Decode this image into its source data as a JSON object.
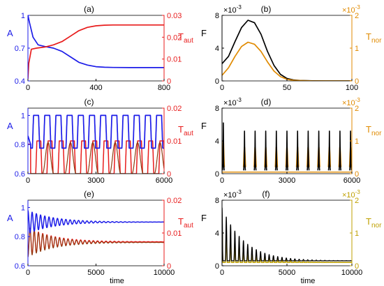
{
  "colors": {
    "blue": "#1c1ce8",
    "red": "#e81c1c",
    "black": "#000000",
    "orange": "#e08a00",
    "olive": "#bfa000",
    "brown": "#8a3d10"
  },
  "chart_data": [
    {
      "panel": "(a)",
      "type": "line",
      "xlim": [
        0,
        800
      ],
      "xticks": [
        "0",
        "400",
        "800"
      ],
      "yleft": {
        "label": "A",
        "color": "#1c1ce8",
        "lim": [
          0.4,
          1.0
        ],
        "ticks": [
          "0.4",
          "0.7",
          "1"
        ],
        "tickvals": [
          0.4,
          0.7,
          1.0
        ]
      },
      "yright": {
        "label": "T",
        "label_sub": "aut",
        "color": "#e81c1c",
        "lim": [
          0,
          0.03
        ],
        "ticks": [
          "0",
          "0.01",
          "0.02",
          "0.03"
        ]
      },
      "series": [
        {
          "axis": "left",
          "color": "#1c1ce8",
          "x": [
            0,
            10,
            30,
            60,
            100,
            150,
            200,
            250,
            300,
            350,
            400,
            450,
            500,
            600,
            700,
            800
          ],
          "y": [
            1.0,
            0.93,
            0.8,
            0.73,
            0.715,
            0.7,
            0.67,
            0.62,
            0.57,
            0.545,
            0.53,
            0.525,
            0.523,
            0.522,
            0.522,
            0.522
          ]
        },
        {
          "axis": "right",
          "color": "#e81c1c",
          "x": [
            0,
            5,
            20,
            50,
            100,
            150,
            200,
            250,
            300,
            350,
            400,
            450,
            500,
            600,
            700,
            800
          ],
          "y": [
            0.001,
            0.008,
            0.0145,
            0.015,
            0.0155,
            0.0165,
            0.018,
            0.0205,
            0.023,
            0.0245,
            0.0252,
            0.0255,
            0.0256,
            0.0256,
            0.0256,
            0.0256
          ]
        }
      ]
    },
    {
      "panel": "(b)",
      "type": "line",
      "xlim": [
        0,
        100
      ],
      "xticks": [
        "0",
        "50",
        "100"
      ],
      "yleft": {
        "label": "F",
        "color": "#000000",
        "lim": [
          0,
          0.008
        ],
        "ticks": [
          "0",
          "4",
          "8"
        ],
        "exponent": "×10",
        "exponent_power": "-3"
      },
      "yright": {
        "label": "T",
        "label_sub": "nor",
        "color": "#e08a00",
        "lim": [
          0,
          0.002
        ],
        "ticks": [
          "0",
          "1",
          "2"
        ],
        "exponent": "×10",
        "exponent_power": "-3"
      },
      "series": [
        {
          "axis": "left",
          "color": "#000000",
          "x": [
            0,
            5,
            10,
            15,
            20,
            25,
            30,
            35,
            40,
            45,
            50,
            55,
            60,
            70,
            80,
            100
          ],
          "y": [
            0.0021,
            0.003,
            0.0048,
            0.0065,
            0.0074,
            0.0071,
            0.0057,
            0.0036,
            0.0019,
            0.0008,
            0.0003,
            0.00012,
            5e-05,
            1e-05,
            0.0,
            0.0
          ]
        },
        {
          "axis": "right",
          "color": "#e08a00",
          "x": [
            0,
            5,
            10,
            15,
            20,
            25,
            30,
            35,
            40,
            45,
            50,
            55,
            60,
            70,
            80,
            100
          ],
          "y": [
            0.00017,
            0.0004,
            0.00075,
            0.00105,
            0.00118,
            0.00112,
            0.0009,
            0.00058,
            0.0003,
            0.00013,
            5e-05,
            2e-05,
            1e-05,
            0.0,
            0.0,
            0.0
          ]
        }
      ]
    },
    {
      "panel": "(c)",
      "type": "line",
      "xlim": [
        0,
        6000
      ],
      "xticks": [
        "0",
        "3000",
        "6000"
      ],
      "yleft": {
        "label": "A",
        "color": "#1c1ce8",
        "lim": [
          0.6,
          1.05
        ],
        "ticks": [
          "0.6",
          "0.8",
          "1"
        ],
        "tickvals": [
          0.6,
          0.8,
          1.0
        ]
      },
      "yright": {
        "label": "T",
        "label_sub": "aut",
        "color": "#e81c1c",
        "lim": [
          0,
          0.02
        ],
        "ticks": [
          "0",
          "0.01",
          "0.02"
        ]
      },
      "oscillation": {
        "period": 493,
        "count": 12,
        "first": 740
      },
      "series": [
        {
          "axis": "left",
          "color": "#1c1ce8",
          "name_hint": "A oscillation",
          "low": 0.775,
          "high": 1.0
        },
        {
          "axis": "right",
          "color": "#e81c1c",
          "name_hint": "Taut oscillation",
          "low": 0.0,
          "high": 0.01
        },
        {
          "axis": "right",
          "color": "#8a3d10",
          "name_hint": "Taut spikes",
          "low": 0.0,
          "high": 0.0095
        }
      ]
    },
    {
      "panel": "(d)",
      "type": "line",
      "xlim": [
        0,
        6000
      ],
      "xticks": [
        "0",
        "3000",
        "6000"
      ],
      "yleft": {
        "label": "F",
        "color": "#000000",
        "lim": [
          0,
          0.008
        ],
        "ticks": [
          "0",
          "4",
          "8"
        ],
        "exponent": "×10",
        "exponent_power": "-3"
      },
      "yright": {
        "label": "T",
        "label_sub": "nor",
        "color": "#e08a00",
        "lim": [
          0,
          0.002
        ],
        "ticks": [
          "0",
          "1",
          "2"
        ],
        "exponent": "×10",
        "exponent_power": "-3"
      },
      "spikes": {
        "x": [
          60,
          1040,
          1530,
          2020,
          2510,
          3000,
          3490,
          3980,
          4470,
          4960,
          5450,
          5940
        ],
        "F": [
          0.0062,
          0.0052,
          0.0052,
          0.0052,
          0.0052,
          0.0052,
          0.0052,
          0.0052,
          0.0052,
          0.0052,
          0.0052,
          0.0052
        ],
        "T": [
          0.001,
          0.0008,
          0.0008,
          0.0008,
          0.0008,
          0.0008,
          0.0008,
          0.0008,
          0.0008,
          0.0008,
          0.0008,
          0.0008
        ]
      }
    },
    {
      "panel": "(e)",
      "type": "line",
      "xlim": [
        0,
        10000
      ],
      "xticks": [
        "0",
        "5000",
        "10000"
      ],
      "xlabel": "time",
      "yleft": {
        "label": "A",
        "color": "#1c1ce8",
        "lim": [
          0.6,
          1.05
        ],
        "ticks": [
          "0.6",
          "0.8",
          "1"
        ],
        "tickvals": [
          0.6,
          0.8,
          1.0
        ]
      },
      "yright": {
        "label": "T",
        "label_sub": "aut",
        "color": "#e81c1c",
        "lim": [
          0,
          0.02
        ],
        "ticks": [
          "0",
          "0.01",
          "0.02"
        ]
      },
      "damped": {
        "period": 310,
        "decay": 1900,
        "A_mean": 0.9,
        "A_amp": 0.08,
        "T_mean": 0.0073,
        "T_amp": 0.0045
      }
    },
    {
      "panel": "(f)",
      "type": "line",
      "xlim": [
        0,
        10000
      ],
      "xticks": [
        "0",
        "5000",
        "10000"
      ],
      "xlabel": "time",
      "yleft": {
        "label": "F",
        "color": "#000000",
        "lim": [
          0,
          0.008
        ],
        "ticks": [
          "0",
          "4",
          "8"
        ],
        "exponent": "×10",
        "exponent_power": "-3"
      },
      "yright": {
        "label": "T",
        "label_sub": "nor",
        "color": "#bfa000",
        "lim": [
          0,
          0.002
        ],
        "ticks": [
          "0",
          "1",
          "2"
        ],
        "exponent": "×10",
        "exponent_power": "-3"
      },
      "damped": {
        "period": 330,
        "decay": 1700,
        "F_base": 0.0006,
        "F_amp": 0.0065,
        "T_base": 0.0001,
        "T_amp": 0.0011
      }
    }
  ]
}
